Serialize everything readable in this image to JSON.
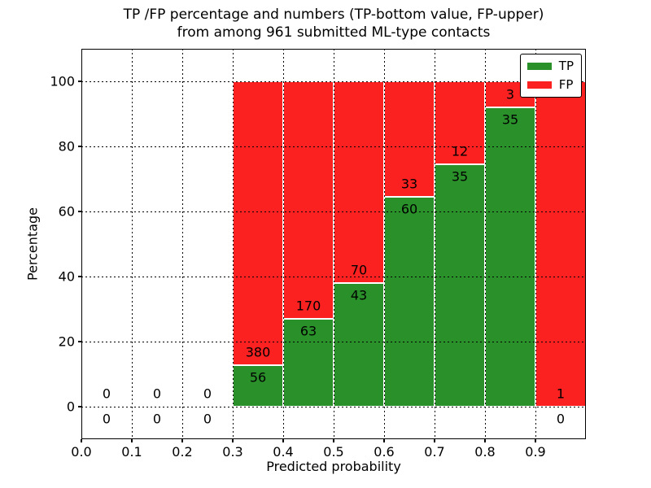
{
  "chart_data": {
    "type": "bar",
    "stacking": "percentage",
    "title_line1": "TP /FP percentage and numbers (TP-bottom value, FP-upper)",
    "title_line2": "from among 961 submitted ML-type contacts",
    "xlabel": "Predicted probability",
    "ylabel": "Percentage",
    "xlim": [
      0.0,
      1.0
    ],
    "ylim": [
      -10,
      110
    ],
    "xtick_labels": [
      "0.0",
      "0.1",
      "0.2",
      "0.3",
      "0.4",
      "0.5",
      "0.6",
      "0.7",
      "0.8",
      "0.9"
    ],
    "ytick_values": [
      0,
      20,
      40,
      60,
      80,
      100
    ],
    "grid": "dotted-black",
    "bin_width": 0.1,
    "total_contacts": 961,
    "categories": [
      "0.0-0.1",
      "0.1-0.2",
      "0.2-0.3",
      "0.3-0.4",
      "0.4-0.5",
      "0.5-0.6",
      "0.6-0.7",
      "0.7-0.8",
      "0.8-0.9",
      "0.9-1.0"
    ],
    "series": [
      {
        "name": "TP",
        "position": "bottom",
        "color": "#2a912a",
        "values": [
          0,
          0,
          0,
          56,
          63,
          43,
          60,
          35,
          35,
          0
        ]
      },
      {
        "name": "FP",
        "position": "top",
        "color": "#fb2121",
        "values": [
          0,
          0,
          0,
          380,
          170,
          70,
          33,
          12,
          3,
          1
        ]
      }
    ],
    "bar_edge_color": "#ffffff",
    "legend": {
      "position": "upper right",
      "entries": [
        {
          "label": "TP",
          "color": "#2a912a"
        },
        {
          "label": "FP",
          "color": "#fb2121"
        }
      ]
    }
  }
}
